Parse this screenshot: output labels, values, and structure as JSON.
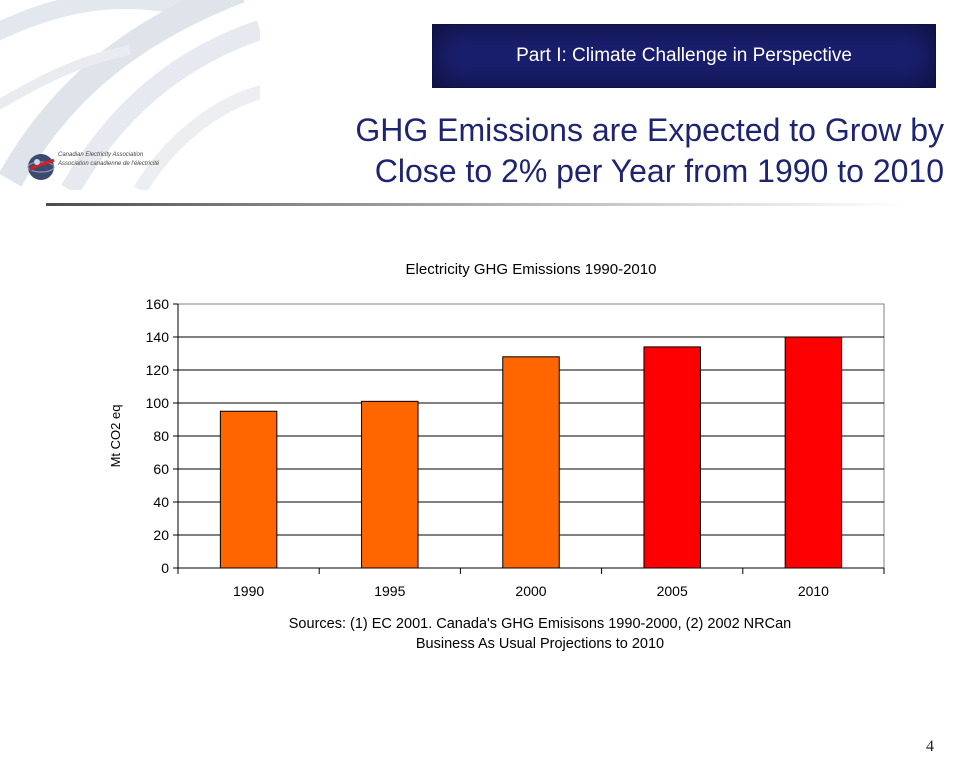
{
  "header": {
    "part_label": "Part I: Climate Challenge in Perspective",
    "title_line1": "GHG Emissions are Expected to Grow by",
    "title_line2": "Close to 2% per Year from 1990 to 2010"
  },
  "logo": {
    "line1": "Canadian Electricity Association",
    "line2": "Association canadienne de l'électricité"
  },
  "page_number": "4",
  "colors": {
    "header_box": "#1a1f6e",
    "title_text": "#1e2470",
    "historical_bar": "#ff6600",
    "projected_bar": "#ff0000"
  },
  "chart_data": {
    "type": "bar",
    "title": "Electricity GHG Emissions 1990-2010",
    "xlabel": "",
    "ylabel": "Mt CO2 eq",
    "categories": [
      "1990",
      "1995",
      "2000",
      "2005",
      "2010"
    ],
    "values": [
      95,
      101,
      128,
      134,
      140
    ],
    "bar_colors": [
      "#ff6600",
      "#ff6600",
      "#ff6600",
      "#ff0000",
      "#ff0000"
    ],
    "ylim": [
      0,
      160
    ],
    "yticks": [
      0,
      20,
      40,
      60,
      80,
      100,
      120,
      140,
      160
    ],
    "grid": true,
    "source_line1": "Sources: (1) EC 2001. Canada's GHG Emisisons 1990-2000, (2) 2002 NRCan",
    "source_line2": "Business As Usual Projections to 2010"
  }
}
